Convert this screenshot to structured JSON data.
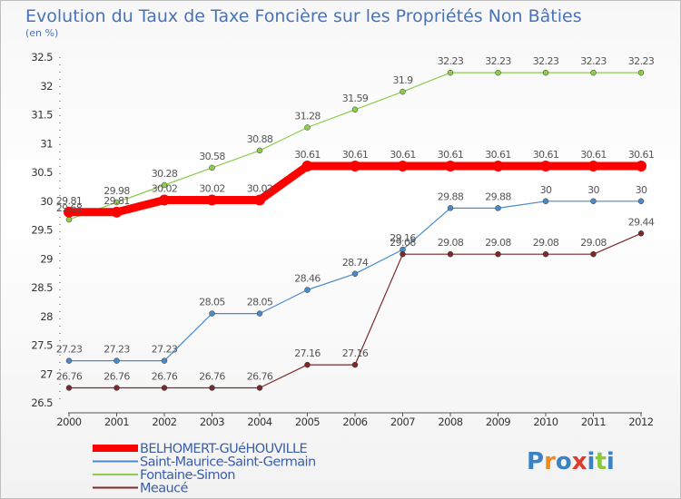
{
  "chart_data": {
    "type": "line",
    "title": "Evolution du Taux de Taxe Foncière sur les Propriétés Non Bâties",
    "subtitle": "(en %)",
    "x": [
      "2000",
      "2001",
      "2002",
      "2003",
      "2004",
      "2005",
      "2006",
      "2007",
      "2008",
      "2009",
      "2010",
      "2011",
      "2012"
    ],
    "ylim": [
      26.5,
      32.5
    ],
    "yticks": [
      "26.5",
      "27",
      "27.5",
      "28",
      "28.5",
      "29",
      "29.5",
      "30",
      "30.5",
      "31",
      "31.5",
      "32",
      "32.5"
    ],
    "grid": false,
    "legend_position": "bottom-left",
    "series": [
      {
        "name": "BELHOMERT-GUéHOUVILLE",
        "color": "#ff0000",
        "values": [
          29.81,
          29.81,
          30.02,
          30.02,
          30.02,
          30.61,
          30.61,
          30.61,
          30.61,
          30.61,
          30.61,
          30.61,
          30.61
        ],
        "labels": [
          "29.81",
          "29.81",
          "30.02",
          "30.02",
          "30.02",
          "30.61",
          "30.61",
          "30.61",
          "30.61",
          "30.61",
          "30.61",
          "30.61",
          "30.61"
        ]
      },
      {
        "name": "Saint-Maurice-Saint-Germain",
        "color": "#4a8ac8",
        "values": [
          27.23,
          27.23,
          27.23,
          28.05,
          28.05,
          28.46,
          28.74,
          29.16,
          29.88,
          29.88,
          30,
          30,
          30
        ],
        "labels": [
          "27.23",
          "27.23",
          "27.23",
          "28.05",
          "28.05",
          "28.46",
          "28.74",
          "29.16",
          "29.88",
          "29.88",
          "30",
          "30",
          "30"
        ]
      },
      {
        "name": "Fontaine-Simon",
        "color": "#8dcc4e",
        "values": [
          29.68,
          29.98,
          30.28,
          30.58,
          30.88,
          31.28,
          31.59,
          31.9,
          32.23,
          32.23,
          32.23,
          32.23,
          32.23
        ],
        "labels": [
          "29.68",
          "29.98",
          "30.28",
          "30.58",
          "30.88",
          "31.28",
          "31.59",
          "31.9",
          "32.23",
          "32.23",
          "32.23",
          "32.23",
          "32.23"
        ]
      },
      {
        "name": "Meaucé",
        "color": "#7a2a2a",
        "values": [
          26.76,
          26.76,
          26.76,
          26.76,
          26.76,
          27.16,
          27.16,
          29.08,
          29.08,
          29.08,
          29.08,
          29.08,
          29.44
        ],
        "labels": [
          "26.76",
          "26.76",
          "26.76",
          "26.76",
          "26.76",
          "27.16",
          "27.16",
          "29.08",
          "29.08",
          "29.08",
          "29.08",
          "29.08",
          "29.44"
        ]
      }
    ]
  },
  "logo": {
    "text": "Proxiti",
    "letters": [
      "P",
      "r",
      "o",
      "x",
      "i",
      "t",
      "i"
    ],
    "colors": [
      "#3b82c4",
      "#f08a1c",
      "#3b82c4",
      "#e23b2e",
      "#3b82c4",
      "#8dc63f",
      "#3b82c4"
    ]
  }
}
